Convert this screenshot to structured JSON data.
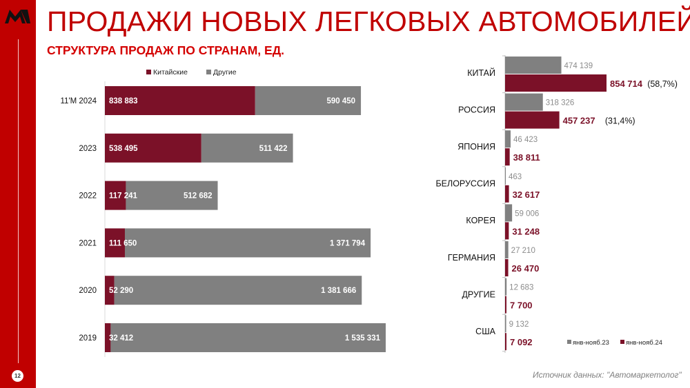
{
  "page": {
    "title": "ПРОДАЖИ НОВЫХ ЛЕГКОВЫХ АВТОМОБИЛЕЙ",
    "subtitle": "СТРУКТУРА ПРОДАЖ ПО СТРАНАМ, ЕД.",
    "page_number": "12",
    "source": "Источник данных: \"Автомаркетолог\""
  },
  "colors": {
    "brand": "#c00000",
    "chinese": "#7b1128",
    "other": "#808080"
  },
  "chart_data": [
    {
      "type": "bar",
      "orientation": "horizontal",
      "stacked": true,
      "legend_position": "top",
      "categories": [
        "11'M 2024",
        "2023",
        "2022",
        "2021",
        "2020",
        "2019"
      ],
      "series": [
        {
          "name": "Китайские",
          "values": [
            838883,
            538495,
            117241,
            111650,
            52290,
            32412
          ],
          "labels": [
            "838 883",
            "538 495",
            "117 241",
            "111 650",
            "52 290",
            "32 412"
          ]
        },
        {
          "name": "Другие",
          "values": [
            590450,
            511422,
            512682,
            1371794,
            1381666,
            1535331
          ],
          "labels": [
            "590 450",
            "511 422",
            "512 682",
            "1 371 794",
            "1 381 666",
            "1 535 331"
          ]
        }
      ]
    },
    {
      "type": "bar",
      "orientation": "horizontal",
      "legend_position": "bottom-right",
      "categories": [
        "КИТАЙ",
        "РОССИЯ",
        "ЯПОНИЯ",
        "БЕЛОРУССИЯ",
        "КОРЕЯ",
        "ГЕРМАНИЯ",
        "ДРУГИЕ",
        "США"
      ],
      "series": [
        {
          "name": "янв-нояб.23",
          "values": [
            474139,
            318326,
            46423,
            463,
            59006,
            27210,
            12683,
            9132
          ],
          "labels": [
            "474 139",
            "318 326",
            "46 423",
            "463",
            "59 006",
            "27 210",
            "12 683",
            "9 132"
          ]
        },
        {
          "name": "янв-нояб.24",
          "values": [
            854714,
            457237,
            38811,
            32617,
            31248,
            26470,
            7700,
            7092
          ],
          "labels": [
            "854 714",
            "457 237",
            "38 811",
            "32 617",
            "31 248",
            "26 470",
            "7 700",
            "7 092"
          ]
        }
      ],
      "annotations": [
        "(58,7%)",
        "(31,4%)",
        null,
        null,
        null,
        null,
        null,
        null
      ]
    }
  ]
}
